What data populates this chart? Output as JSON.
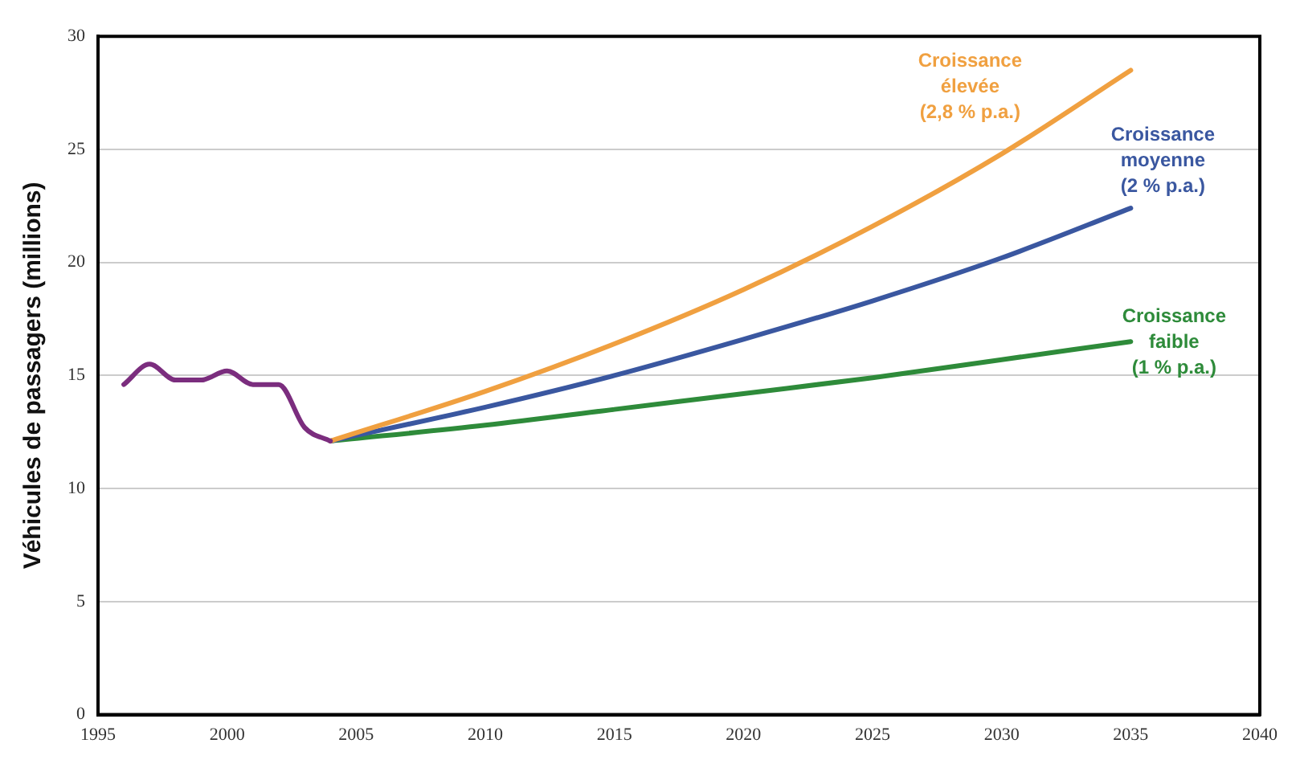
{
  "chart_data": {
    "type": "line",
    "ylabel": "Véhicules de passagers (millions)",
    "xlim": [
      1995,
      2040
    ],
    "xticks": [
      1995,
      2000,
      2005,
      2010,
      2015,
      2020,
      2025,
      2030,
      2035,
      2040
    ],
    "ylim": [
      0,
      30
    ],
    "yticks": [
      0,
      5,
      10,
      15,
      20,
      25,
      30
    ],
    "grid": "y",
    "legend": false,
    "marker": "none",
    "line_style": "solid",
    "series": [
      {
        "color": "#7b2d7e",
        "x": [
          1996,
          1997,
          1998,
          1999,
          2000,
          2001,
          2002,
          2003,
          2004
        ],
        "values": [
          14.6,
          15.5,
          14.8,
          14.8,
          15.2,
          14.6,
          14.6,
          12.7,
          12.1
        ]
      },
      {
        "name": "Croissance\nélevée\n(2,8 % p.a.)",
        "color": "#f0a040",
        "x": [
          2004,
          2010,
          2015,
          2020,
          2025,
          2030,
          2035
        ],
        "values": [
          12.1,
          14.3,
          16.4,
          18.8,
          21.6,
          24.8,
          28.5
        ]
      },
      {
        "name": "Croissance\nmoyenne\n(2 % p.a.)",
        "color": "#3a57a0",
        "x": [
          2004,
          2010,
          2015,
          2020,
          2025,
          2030,
          2035
        ],
        "values": [
          12.1,
          13.6,
          15.0,
          16.6,
          18.3,
          20.2,
          22.4
        ]
      },
      {
        "name": "Croissance\nfaible\n(1 % p.a.)",
        "color": "#2e8b3a",
        "x": [
          2004,
          2010,
          2015,
          2020,
          2025,
          2030,
          2035
        ],
        "values": [
          12.1,
          12.8,
          13.5,
          14.2,
          14.9,
          15.7,
          16.5
        ]
      }
    ]
  }
}
